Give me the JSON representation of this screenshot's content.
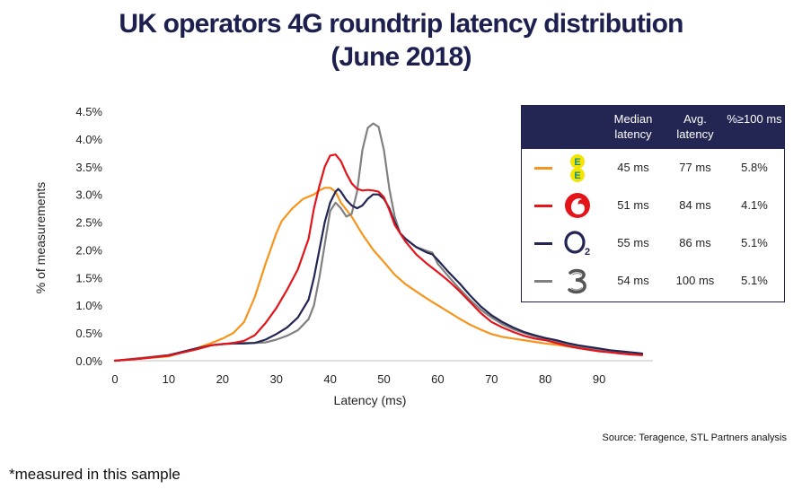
{
  "title_line1": "UK operators 4G roundtrip latency distribution",
  "title_line2": "(June 2018)",
  "source": "Source: Teragence, STL Partners analysis",
  "footnote": "*measured in this sample",
  "table": {
    "headers": [
      "Median latency",
      "Avg. latency",
      "%≥100 ms"
    ],
    "rows": [
      {
        "operator_logo": "ee-logo",
        "color": "#f7941d",
        "median": "45 ms",
        "avg": "77 ms",
        "pct": "5.8%"
      },
      {
        "operator_logo": "vodafone-logo",
        "color": "#e4141b",
        "median": "51 ms",
        "avg": "84 ms",
        "pct": "4.1%"
      },
      {
        "operator_logo": "o2-logo",
        "color": "#232552",
        "median": "55 ms",
        "avg": "86 ms",
        "pct": "5.1%"
      },
      {
        "operator_logo": "three-logo",
        "color": "#808080",
        "median": "54 ms",
        "avg": "100 ms",
        "pct": "5.1%"
      }
    ]
  },
  "chart_data": {
    "type": "line",
    "title": "UK operators 4G roundtrip latency distribution (June 2018)",
    "xlabel": "Latency  (ms)",
    "ylabel": "% of measurements",
    "xlim": [
      0,
      100
    ],
    "ylim": [
      0,
      4.5
    ],
    "xticks": [
      0,
      10,
      20,
      30,
      40,
      50,
      60,
      70,
      80,
      90
    ],
    "xtick_labels": [
      "0",
      "10",
      "20",
      "30",
      "40",
      "50",
      "60",
      "70",
      "80",
      "90"
    ],
    "yticks": [
      0,
      0.5,
      1.0,
      1.5,
      2.0,
      2.5,
      3.0,
      3.5,
      4.0,
      4.5
    ],
    "ytick_labels": [
      "0.0%",
      "0.5%",
      "1.0%",
      "1.5%",
      "2.0%",
      "2.5%",
      "3.0%",
      "3.5%",
      "4.0%",
      "4.5%"
    ],
    "grid": false,
    "series": [
      {
        "color": "#f7941d",
        "points": [
          [
            0,
            0
          ],
          [
            5,
            0.04
          ],
          [
            10,
            0.08
          ],
          [
            15,
            0.22
          ],
          [
            18,
            0.32
          ],
          [
            20,
            0.4
          ],
          [
            22,
            0.5
          ],
          [
            24,
            0.7
          ],
          [
            26,
            1.15
          ],
          [
            28,
            1.75
          ],
          [
            30,
            2.3
          ],
          [
            31,
            2.52
          ],
          [
            33,
            2.75
          ],
          [
            35,
            2.92
          ],
          [
            37,
            3.0
          ],
          [
            38,
            3.07
          ],
          [
            39,
            3.12
          ],
          [
            40,
            3.12
          ],
          [
            41,
            3.05
          ],
          [
            42,
            2.85
          ],
          [
            44,
            2.6
          ],
          [
            46,
            2.28
          ],
          [
            48,
            2.0
          ],
          [
            50,
            1.78
          ],
          [
            52,
            1.55
          ],
          [
            54,
            1.38
          ],
          [
            56,
            1.25
          ],
          [
            58,
            1.12
          ],
          [
            60,
            1.0
          ],
          [
            62,
            0.88
          ],
          [
            64,
            0.76
          ],
          [
            66,
            0.65
          ],
          [
            68,
            0.56
          ],
          [
            70,
            0.48
          ],
          [
            72,
            0.43
          ],
          [
            74,
            0.4
          ],
          [
            76,
            0.37
          ],
          [
            78,
            0.34
          ],
          [
            80,
            0.31
          ],
          [
            82,
            0.29
          ],
          [
            84,
            0.26
          ],
          [
            86,
            0.23
          ],
          [
            88,
            0.2
          ],
          [
            90,
            0.18
          ],
          [
            92,
            0.16
          ],
          [
            94,
            0.14
          ],
          [
            96,
            0.12
          ],
          [
            98,
            0.1
          ]
        ]
      },
      {
        "color": "#e4141b",
        "points": [
          [
            0,
            0
          ],
          [
            5,
            0.04
          ],
          [
            10,
            0.09
          ],
          [
            15,
            0.2
          ],
          [
            18,
            0.28
          ],
          [
            20,
            0.3
          ],
          [
            22,
            0.32
          ],
          [
            24,
            0.36
          ],
          [
            26,
            0.46
          ],
          [
            28,
            0.68
          ],
          [
            30,
            0.95
          ],
          [
            32,
            1.28
          ],
          [
            34,
            1.65
          ],
          [
            36,
            2.2
          ],
          [
            37,
            2.75
          ],
          [
            38,
            3.15
          ],
          [
            39,
            3.5
          ],
          [
            40,
            3.7
          ],
          [
            41,
            3.72
          ],
          [
            42,
            3.6
          ],
          [
            43,
            3.38
          ],
          [
            44,
            3.2
          ],
          [
            45,
            3.1
          ],
          [
            46,
            3.07
          ],
          [
            47,
            3.08
          ],
          [
            48,
            3.07
          ],
          [
            49,
            3.05
          ],
          [
            50,
            2.95
          ],
          [
            51,
            2.72
          ],
          [
            52,
            2.45
          ],
          [
            54,
            2.15
          ],
          [
            56,
            1.92
          ],
          [
            58,
            1.75
          ],
          [
            60,
            1.6
          ],
          [
            62,
            1.44
          ],
          [
            64,
            1.26
          ],
          [
            66,
            1.06
          ],
          [
            68,
            0.86
          ],
          [
            70,
            0.7
          ],
          [
            72,
            0.6
          ],
          [
            74,
            0.52
          ],
          [
            76,
            0.45
          ],
          [
            78,
            0.4
          ],
          [
            80,
            0.37
          ],
          [
            82,
            0.32
          ],
          [
            84,
            0.27
          ],
          [
            86,
            0.23
          ],
          [
            88,
            0.2
          ],
          [
            90,
            0.17
          ],
          [
            92,
            0.15
          ],
          [
            94,
            0.13
          ],
          [
            96,
            0.11
          ],
          [
            98,
            0.1
          ]
        ]
      },
      {
        "color": "#232552",
        "points": [
          [
            0,
            0
          ],
          [
            5,
            0.04
          ],
          [
            10,
            0.1
          ],
          [
            15,
            0.22
          ],
          [
            18,
            0.28
          ],
          [
            20,
            0.3
          ],
          [
            22,
            0.31
          ],
          [
            24,
            0.31
          ],
          [
            26,
            0.32
          ],
          [
            28,
            0.38
          ],
          [
            30,
            0.48
          ],
          [
            32,
            0.6
          ],
          [
            34,
            0.78
          ],
          [
            36,
            1.1
          ],
          [
            37,
            1.5
          ],
          [
            38,
            2.0
          ],
          [
            39,
            2.5
          ],
          [
            40,
            2.85
          ],
          [
            41,
            3.05
          ],
          [
            41.5,
            3.1
          ],
          [
            42,
            3.05
          ],
          [
            43,
            2.9
          ],
          [
            44,
            2.8
          ],
          [
            45,
            2.75
          ],
          [
            46,
            2.8
          ],
          [
            47,
            2.92
          ],
          [
            48,
            3.0
          ],
          [
            49,
            3.0
          ],
          [
            50,
            2.92
          ],
          [
            51,
            2.75
          ],
          [
            52,
            2.5
          ],
          [
            53,
            2.3
          ],
          [
            54,
            2.2
          ],
          [
            56,
            2.05
          ],
          [
            58,
            1.95
          ],
          [
            59,
            1.92
          ],
          [
            60,
            1.82
          ],
          [
            62,
            1.6
          ],
          [
            64,
            1.4
          ],
          [
            66,
            1.18
          ],
          [
            68,
            0.98
          ],
          [
            70,
            0.82
          ],
          [
            72,
            0.7
          ],
          [
            74,
            0.6
          ],
          [
            76,
            0.52
          ],
          [
            78,
            0.46
          ],
          [
            80,
            0.41
          ],
          [
            82,
            0.37
          ],
          [
            84,
            0.32
          ],
          [
            86,
            0.28
          ],
          [
            88,
            0.25
          ],
          [
            90,
            0.22
          ],
          [
            92,
            0.19
          ],
          [
            94,
            0.17
          ],
          [
            96,
            0.15
          ],
          [
            98,
            0.13
          ]
        ]
      },
      {
        "color": "#808080",
        "points": [
          [
            0,
            0
          ],
          [
            5,
            0.05
          ],
          [
            10,
            0.1
          ],
          [
            15,
            0.2
          ],
          [
            18,
            0.28
          ],
          [
            20,
            0.3
          ],
          [
            22,
            0.32
          ],
          [
            24,
            0.32
          ],
          [
            26,
            0.32
          ],
          [
            28,
            0.33
          ],
          [
            30,
            0.38
          ],
          [
            32,
            0.45
          ],
          [
            34,
            0.55
          ],
          [
            36,
            0.75
          ],
          [
            37,
            1.0
          ],
          [
            38,
            1.5
          ],
          [
            39,
            2.1
          ],
          [
            40,
            2.7
          ],
          [
            41,
            2.85
          ],
          [
            42,
            2.75
          ],
          [
            43,
            2.6
          ],
          [
            44,
            2.65
          ],
          [
            45,
            3.05
          ],
          [
            46,
            3.8
          ],
          [
            47,
            4.2
          ],
          [
            48,
            4.28
          ],
          [
            49,
            4.22
          ],
          [
            50,
            3.8
          ],
          [
            51,
            3.1
          ],
          [
            52,
            2.6
          ],
          [
            53,
            2.3
          ],
          [
            54,
            2.2
          ],
          [
            56,
            2.05
          ],
          [
            58,
            1.98
          ],
          [
            59,
            1.95
          ],
          [
            60,
            1.75
          ],
          [
            62,
            1.52
          ],
          [
            64,
            1.3
          ],
          [
            66,
            1.1
          ],
          [
            68,
            0.92
          ],
          [
            70,
            0.78
          ],
          [
            72,
            0.66
          ],
          [
            74,
            0.57
          ],
          [
            76,
            0.5
          ],
          [
            78,
            0.44
          ],
          [
            80,
            0.39
          ],
          [
            82,
            0.34
          ],
          [
            84,
            0.3
          ],
          [
            86,
            0.26
          ],
          [
            88,
            0.23
          ],
          [
            90,
            0.2
          ],
          [
            92,
            0.17
          ],
          [
            94,
            0.15
          ],
          [
            96,
            0.13
          ],
          [
            98,
            0.12
          ]
        ]
      }
    ]
  }
}
